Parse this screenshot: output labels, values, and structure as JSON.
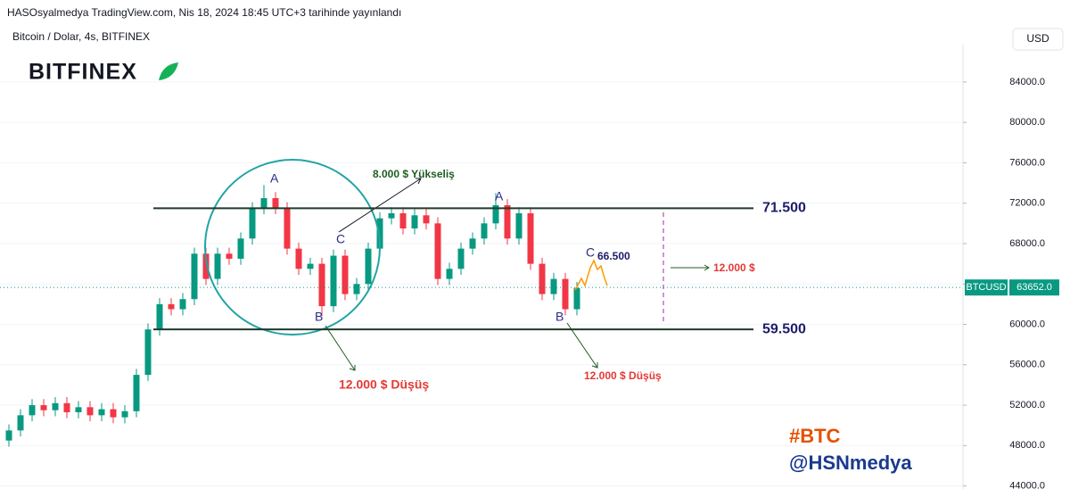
{
  "header": "HASOsyalmedya TradingView.com, Nis 18, 2024 18:45 UTC+3 tarihinde yayınlandı",
  "chart_data": {
    "type": "candlestick",
    "symbol": "Bitcoin / Dolar, 4s, BITFINEX",
    "logo": "BITFINEX",
    "currency": "USD",
    "up_color": "#089981",
    "down_color": "#f23645",
    "open": [
      48500,
      49500,
      51000,
      52000,
      51500,
      52200,
      51300,
      51800,
      51000,
      51600,
      50800,
      51400,
      55000,
      59500,
      62000,
      61500,
      62500,
      67000,
      64500,
      67000,
      66500,
      68500,
      71500,
      72500,
      71500,
      67500,
      65500,
      66000,
      61800,
      66800,
      63000,
      64000,
      67500,
      70500,
      71000,
      69500,
      70800,
      70000,
      64500,
      65500,
      67500,
      68500,
      70000,
      71800,
      68500,
      71000,
      66000,
      63000,
      64500,
      61500
    ],
    "high": [
      50100,
      51600,
      52600,
      52600,
      52800,
      52800,
      52400,
      52400,
      52200,
      52200,
      52000,
      55600,
      60100,
      62600,
      62600,
      63100,
      67600,
      67600,
      67600,
      67600,
      69100,
      72100,
      73800,
      73100,
      72100,
      68100,
      66600,
      66600,
      67400,
      67400,
      64600,
      68100,
      71100,
      71600,
      71600,
      71400,
      71400,
      70600,
      66100,
      68100,
      69100,
      70600,
      73000,
      72400,
      71600,
      71600,
      66600,
      65100,
      65100,
      64200
    ],
    "low": [
      47900,
      48900,
      50400,
      50900,
      50900,
      50700,
      50700,
      50400,
      50400,
      50200,
      50200,
      50800,
      54400,
      58900,
      60900,
      60900,
      61900,
      63900,
      63900,
      65900,
      65900,
      67900,
      70900,
      70900,
      66900,
      64900,
      64900,
      60800,
      61200,
      62400,
      62400,
      63400,
      66900,
      69900,
      68900,
      68900,
      69400,
      63900,
      63900,
      64900,
      66900,
      67900,
      69400,
      67900,
      67900,
      65400,
      62400,
      62400,
      60900,
      60900
    ],
    "close": [
      49500,
      51000,
      52000,
      51500,
      52200,
      51300,
      51800,
      51000,
      51600,
      50800,
      51400,
      55000,
      59500,
      62000,
      61500,
      62500,
      67000,
      64500,
      67000,
      66500,
      68500,
      71500,
      72500,
      71500,
      67500,
      65500,
      66000,
      61800,
      66800,
      63000,
      64000,
      67500,
      70500,
      71000,
      69500,
      70800,
      70000,
      64500,
      65500,
      67500,
      68500,
      70000,
      71800,
      68500,
      71000,
      66000,
      63000,
      64500,
      61500,
      63600
    ],
    "ylim": [
      43700,
      87700
    ],
    "yticks": [
      {
        "value": 44000,
        "label": "44000.0"
      },
      {
        "value": 48000,
        "label": "48000.0"
      },
      {
        "value": 52000,
        "label": "52000.0"
      },
      {
        "value": 56000,
        "label": "56000.0"
      },
      {
        "value": 60000,
        "label": "60000.0"
      },
      {
        "value": 64000,
        "label": "64000.0"
      },
      {
        "value": 68000,
        "label": "68000.0"
      },
      {
        "value": 72000,
        "label": "72000.0"
      },
      {
        "value": 76000,
        "label": "76000.0"
      },
      {
        "value": 80000,
        "label": "80000.0"
      },
      {
        "value": 84000,
        "label": "84000.0"
      }
    ],
    "grid": true,
    "levels": [
      {
        "value": 71500,
        "label": "71.500"
      },
      {
        "value": 59500,
        "label": "59.500"
      }
    ],
    "last_price": {
      "name": "BTCUSD",
      "value": 63652,
      "label": "63652.0"
    },
    "annotations": [
      "A",
      "B",
      "C",
      "8.000 $ Yükseliş",
      "12.000 $ Düşüş",
      "A",
      "B",
      "C",
      "66.500",
      "12.000 $",
      "12.000 $ Düşüş"
    ],
    "tags": [
      "#BTC",
      "@HSNmedya"
    ]
  }
}
